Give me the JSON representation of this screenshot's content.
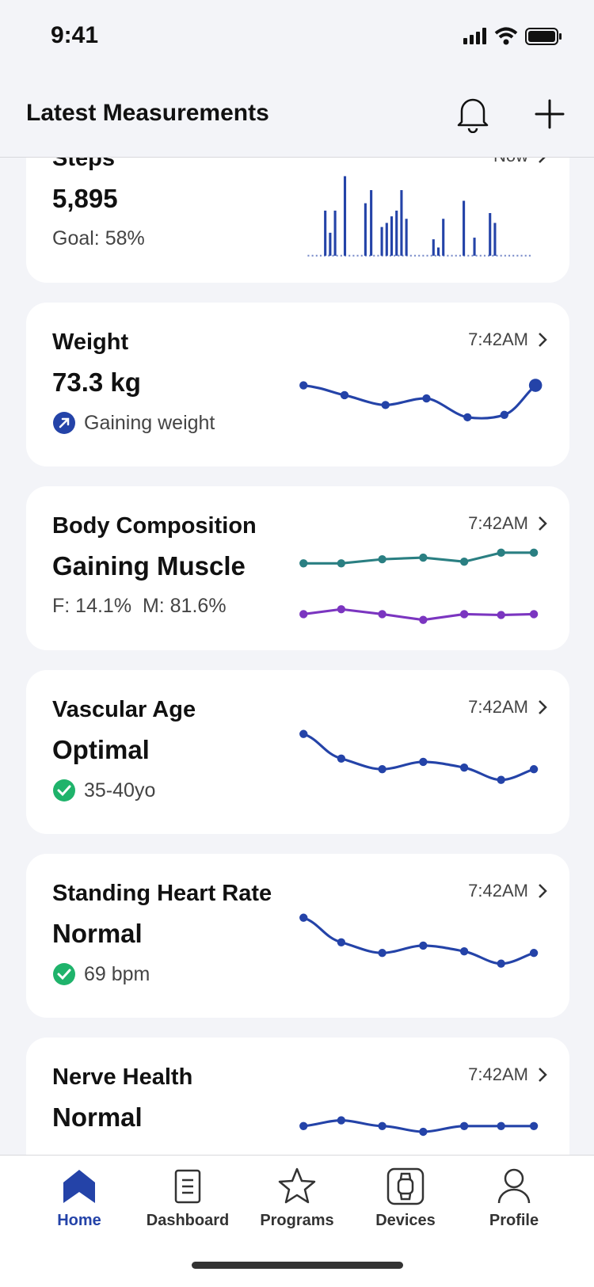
{
  "status_bar": {
    "time": "9:41"
  },
  "header": {
    "title": "Latest Measurements"
  },
  "cards": [
    {
      "title": "Steps",
      "time": "Now",
      "value": "5,895",
      "detail": "Goal: 58%"
    },
    {
      "title": "Weight",
      "time": "7:42AM",
      "value": "73.3 kg",
      "detail": "Gaining weight"
    },
    {
      "title": "Body Composition",
      "time": "7:42AM",
      "value": "Gaining Muscle",
      "detail": "F: 14.1%  M: 81.6%"
    },
    {
      "title": "Vascular Age",
      "time": "7:42AM",
      "value": "Optimal",
      "detail": "35-40yo"
    },
    {
      "title": "Standing Heart Rate",
      "time": "7:42AM",
      "value": "Normal",
      "detail": "69 bpm"
    },
    {
      "title": "Nerve Health",
      "time": "7:42AM",
      "value": "Normal"
    }
  ],
  "tab_bar": {
    "items": [
      "Home",
      "Dashboard",
      "Programs",
      "Devices",
      "Profile"
    ]
  }
}
